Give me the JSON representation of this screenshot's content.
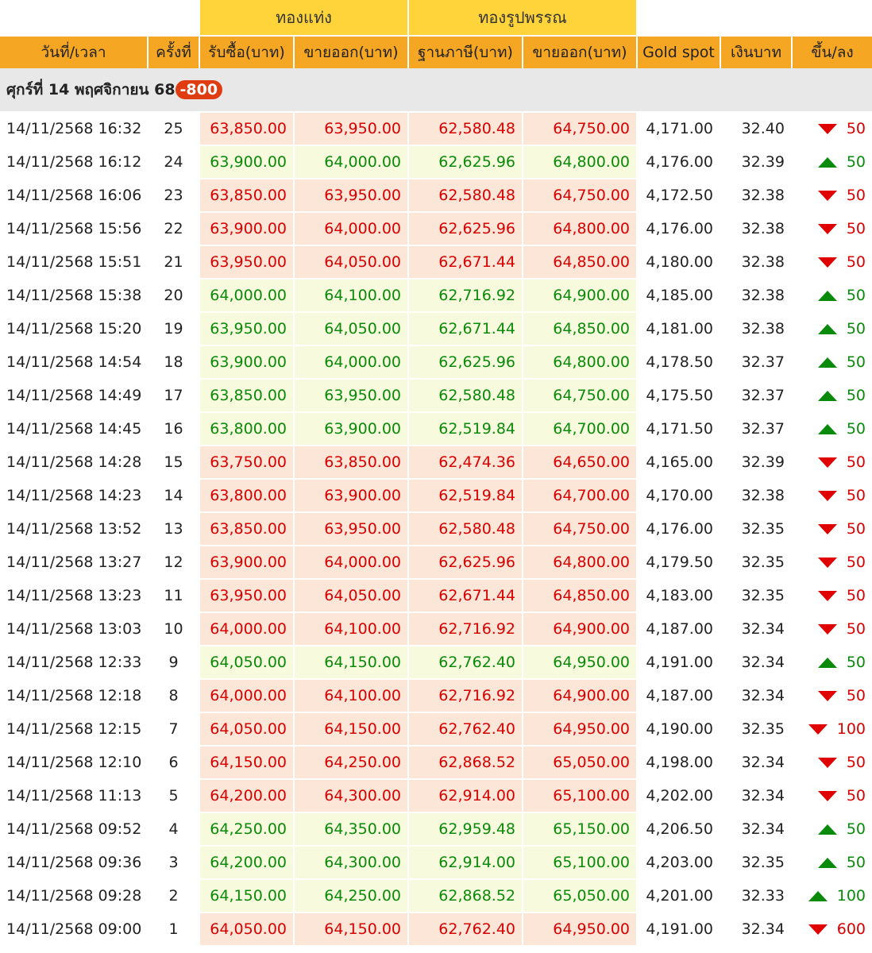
{
  "group_headers": {
    "bar": "ทองแท่ง",
    "ornament": "ทองรูปพรรณ"
  },
  "columns": {
    "datetime": "วันที่/เวลา",
    "round": "ครั้งที่",
    "bar_buy": "รับซื้อ(บาท)",
    "bar_sell": "ขายออก(บาท)",
    "orn_base": "ฐานภาษี(บาท)",
    "orn_sell": "ขายออก(บาท)",
    "spot": "Gold spot",
    "thb": "เงินบาท",
    "change": "ขึ้น/ลง"
  },
  "day": {
    "label": "ศุกร์ที่ 14 พฤศจิกายน 68",
    "total_change": "-800"
  },
  "colors": {
    "up": "#0a8a0a",
    "down": "#d80000",
    "header": "#f5a623",
    "group_header": "#ffd43b"
  },
  "rows": [
    {
      "time": "14/11/2568 16:32",
      "no": "25",
      "buy": "63,850.00",
      "sell": "63,950.00",
      "base": "62,580.48",
      "orn": "64,750.00",
      "spot": "4,171.00",
      "thb": "32.40",
      "dir": "down",
      "chg": "50"
    },
    {
      "time": "14/11/2568 16:12",
      "no": "24",
      "buy": "63,900.00",
      "sell": "64,000.00",
      "base": "62,625.96",
      "orn": "64,800.00",
      "spot": "4,176.00",
      "thb": "32.39",
      "dir": "up",
      "chg": "50"
    },
    {
      "time": "14/11/2568 16:06",
      "no": "23",
      "buy": "63,850.00",
      "sell": "63,950.00",
      "base": "62,580.48",
      "orn": "64,750.00",
      "spot": "4,172.50",
      "thb": "32.38",
      "dir": "down",
      "chg": "50"
    },
    {
      "time": "14/11/2568 15:56",
      "no": "22",
      "buy": "63,900.00",
      "sell": "64,000.00",
      "base": "62,625.96",
      "orn": "64,800.00",
      "spot": "4,176.00",
      "thb": "32.38",
      "dir": "down",
      "chg": "50"
    },
    {
      "time": "14/11/2568 15:51",
      "no": "21",
      "buy": "63,950.00",
      "sell": "64,050.00",
      "base": "62,671.44",
      "orn": "64,850.00",
      "spot": "4,180.00",
      "thb": "32.38",
      "dir": "down",
      "chg": "50"
    },
    {
      "time": "14/11/2568 15:38",
      "no": "20",
      "buy": "64,000.00",
      "sell": "64,100.00",
      "base": "62,716.92",
      "orn": "64,900.00",
      "spot": "4,185.00",
      "thb": "32.38",
      "dir": "up",
      "chg": "50"
    },
    {
      "time": "14/11/2568 15:20",
      "no": "19",
      "buy": "63,950.00",
      "sell": "64,050.00",
      "base": "62,671.44",
      "orn": "64,850.00",
      "spot": "4,181.00",
      "thb": "32.38",
      "dir": "up",
      "chg": "50"
    },
    {
      "time": "14/11/2568 14:54",
      "no": "18",
      "buy": "63,900.00",
      "sell": "64,000.00",
      "base": "62,625.96",
      "orn": "64,800.00",
      "spot": "4,178.50",
      "thb": "32.37",
      "dir": "up",
      "chg": "50"
    },
    {
      "time": "14/11/2568 14:49",
      "no": "17",
      "buy": "63,850.00",
      "sell": "63,950.00",
      "base": "62,580.48",
      "orn": "64,750.00",
      "spot": "4,175.50",
      "thb": "32.37",
      "dir": "up",
      "chg": "50"
    },
    {
      "time": "14/11/2568 14:45",
      "no": "16",
      "buy": "63,800.00",
      "sell": "63,900.00",
      "base": "62,519.84",
      "orn": "64,700.00",
      "spot": "4,171.50",
      "thb": "32.37",
      "dir": "up",
      "chg": "50"
    },
    {
      "time": "14/11/2568 14:28",
      "no": "15",
      "buy": "63,750.00",
      "sell": "63,850.00",
      "base": "62,474.36",
      "orn": "64,650.00",
      "spot": "4,165.00",
      "thb": "32.39",
      "dir": "down",
      "chg": "50"
    },
    {
      "time": "14/11/2568 14:23",
      "no": "14",
      "buy": "63,800.00",
      "sell": "63,900.00",
      "base": "62,519.84",
      "orn": "64,700.00",
      "spot": "4,170.00",
      "thb": "32.38",
      "dir": "down",
      "chg": "50"
    },
    {
      "time": "14/11/2568 13:52",
      "no": "13",
      "buy": "63,850.00",
      "sell": "63,950.00",
      "base": "62,580.48",
      "orn": "64,750.00",
      "spot": "4,176.00",
      "thb": "32.35",
      "dir": "down",
      "chg": "50"
    },
    {
      "time": "14/11/2568 13:27",
      "no": "12",
      "buy": "63,900.00",
      "sell": "64,000.00",
      "base": "62,625.96",
      "orn": "64,800.00",
      "spot": "4,179.50",
      "thb": "32.35",
      "dir": "down",
      "chg": "50"
    },
    {
      "time": "14/11/2568 13:23",
      "no": "11",
      "buy": "63,950.00",
      "sell": "64,050.00",
      "base": "62,671.44",
      "orn": "64,850.00",
      "spot": "4,183.00",
      "thb": "32.35",
      "dir": "down",
      "chg": "50"
    },
    {
      "time": "14/11/2568 13:03",
      "no": "10",
      "buy": "64,000.00",
      "sell": "64,100.00",
      "base": "62,716.92",
      "orn": "64,900.00",
      "spot": "4,187.00",
      "thb": "32.34",
      "dir": "down",
      "chg": "50"
    },
    {
      "time": "14/11/2568 12:33",
      "no": "9",
      "buy": "64,050.00",
      "sell": "64,150.00",
      "base": "62,762.40",
      "orn": "64,950.00",
      "spot": "4,191.00",
      "thb": "32.34",
      "dir": "up",
      "chg": "50"
    },
    {
      "time": "14/11/2568 12:18",
      "no": "8",
      "buy": "64,000.00",
      "sell": "64,100.00",
      "base": "62,716.92",
      "orn": "64,900.00",
      "spot": "4,187.00",
      "thb": "32.34",
      "dir": "down",
      "chg": "50"
    },
    {
      "time": "14/11/2568 12:15",
      "no": "7",
      "buy": "64,050.00",
      "sell": "64,150.00",
      "base": "62,762.40",
      "orn": "64,950.00",
      "spot": "4,190.00",
      "thb": "32.35",
      "dir": "down",
      "chg": "100"
    },
    {
      "time": "14/11/2568 12:10",
      "no": "6",
      "buy": "64,150.00",
      "sell": "64,250.00",
      "base": "62,868.52",
      "orn": "65,050.00",
      "spot": "4,198.00",
      "thb": "32.34",
      "dir": "down",
      "chg": "50"
    },
    {
      "time": "14/11/2568 11:13",
      "no": "5",
      "buy": "64,200.00",
      "sell": "64,300.00",
      "base": "62,914.00",
      "orn": "65,100.00",
      "spot": "4,202.00",
      "thb": "32.34",
      "dir": "down",
      "chg": "50"
    },
    {
      "time": "14/11/2568 09:52",
      "no": "4",
      "buy": "64,250.00",
      "sell": "64,350.00",
      "base": "62,959.48",
      "orn": "65,150.00",
      "spot": "4,206.50",
      "thb": "32.34",
      "dir": "up",
      "chg": "50"
    },
    {
      "time": "14/11/2568 09:36",
      "no": "3",
      "buy": "64,200.00",
      "sell": "64,300.00",
      "base": "62,914.00",
      "orn": "65,100.00",
      "spot": "4,203.00",
      "thb": "32.35",
      "dir": "up",
      "chg": "50"
    },
    {
      "time": "14/11/2568 09:28",
      "no": "2",
      "buy": "64,150.00",
      "sell": "64,250.00",
      "base": "62,868.52",
      "orn": "65,050.00",
      "spot": "4,201.00",
      "thb": "32.33",
      "dir": "up",
      "chg": "100"
    },
    {
      "time": "14/11/2568 09:00",
      "no": "1",
      "buy": "64,050.00",
      "sell": "64,150.00",
      "base": "62,762.40",
      "orn": "64,950.00",
      "spot": "4,191.00",
      "thb": "32.34",
      "dir": "down",
      "chg": "600"
    }
  ]
}
